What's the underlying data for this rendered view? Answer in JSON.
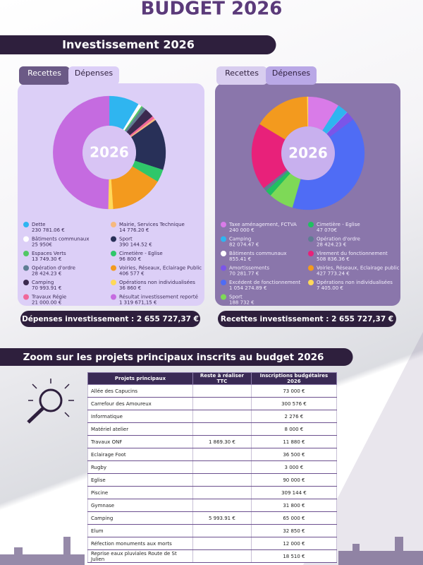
{
  "title": "BUDGET 2026",
  "section_title": "Investissement 2026",
  "chart_data": [
    {
      "type": "pie",
      "tabs": [
        "Recettes",
        "Dépenses"
      ],
      "center_label": "2026",
      "categories": [
        "Dette",
        "Bâtiments communaux",
        "Espaces Verts",
        "Opération d'ordre",
        "Camping",
        "Travaux Régie",
        "Mairie, Services Technique",
        "Sport",
        "Cimetière - Eglise",
        "Voiries, Réseaux, Eclairage Public",
        "Opérations non individualisées",
        "Résultat investissement reporté"
      ],
      "values": [
        230781.06,
        25950,
        13749.3,
        28424.23,
        70993.91,
        21000.0,
        14776.2,
        390144.52,
        96800,
        406577,
        36860,
        1319671.15
      ],
      "value_labels": [
        "230 781.06 €",
        "25 950€",
        "13 749.30 €",
        "28 424.23 €",
        "70 993.91 €",
        "21 000.00 €",
        "14 776.20 €",
        "390 144.52 €",
        "96 800 €",
        "406 577 €",
        "36 860 €",
        "1 319 671,15 €"
      ],
      "colors": [
        "#2fb5f0",
        "#ffffff",
        "#52c765",
        "#5f7d93",
        "#3b2a4f",
        "#f0679a",
        "#f6b97f",
        "#283058",
        "#2fc76a",
        "#f39a1e",
        "#ffd95a",
        "#c56be0"
      ],
      "total_label": "Dépenses investissement : 2 655 727,37 €"
    },
    {
      "type": "pie",
      "tabs": [
        "Recettes",
        "Dépenses"
      ],
      "center_label": "2026",
      "categories": [
        "Taxe aménagement, FCTVA",
        "Camping",
        "Bâtiments communaux",
        "Amortissements",
        "Excédent de fonctionnement",
        "Sport",
        "Cimetière - Eglise",
        "Opération d'ordre",
        "Virement du fonctionnement",
        "Voiries, Réseaux, Eclairage public",
        "Opérations non individualisées"
      ],
      "values": [
        240000,
        82074.47,
        855.41,
        70281.77,
        1054274.89,
        188732,
        47070,
        28424.23,
        508836.36,
        427773.24,
        7405.0
      ],
      "value_labels": [
        "240 000 €",
        "82 074.47 €",
        "855.41 €",
        "70 281.77 €",
        "1 054 274.89 €",
        "188 732 €",
        "47 070€",
        "28 424.23 €",
        "508 836.36 €",
        "427 773.24 €",
        "7 405.00 €"
      ],
      "colors": [
        "#d97be8",
        "#2fb5f0",
        "#ffffff",
        "#7b55e8",
        "#4f6cf5",
        "#7ed957",
        "#20c060",
        "#5f7d93",
        "#e8217a",
        "#f39a1e",
        "#ffd95a"
      ],
      "total_label": "Recettes investissement : 2 655 727,37 €"
    }
  ],
  "zoom": {
    "title": "Zoom sur les projets principaux inscrits au budget 2026",
    "table": {
      "headers": [
        "Projets principaux",
        "Reste à réaliser TTC",
        "Inscriptions budgétaires 2026"
      ],
      "rows": [
        [
          "Allée des Capucins",
          null,
          "73 000 €"
        ],
        [
          "Carrefour des Amoureux",
          null,
          "300 576 €"
        ],
        [
          "Informatique",
          null,
          "2 276 €"
        ],
        [
          "Matériel atelier",
          null,
          "8 000 €"
        ],
        [
          "Travaux ONF",
          "1 869.30 €",
          "11 880 €"
        ],
        [
          "Eclairage Foot",
          null,
          "36 500 €"
        ],
        [
          "Rugby",
          null,
          "3 000 €"
        ],
        [
          "Eglise",
          null,
          "90 000 €"
        ],
        [
          "Piscine",
          null,
          "309 144 €"
        ],
        [
          "Gymnase",
          null,
          "31 800 €"
        ],
        [
          "Camping",
          "5 993.91 €",
          "65 000 €"
        ],
        [
          "Elum",
          null,
          "32 850 €"
        ],
        [
          "Réfection monuments aux morts",
          null,
          "12 000 €"
        ],
        [
          "Reprise eaux pluviales Route de St Julien",
          null,
          "18 510 €"
        ]
      ]
    }
  }
}
